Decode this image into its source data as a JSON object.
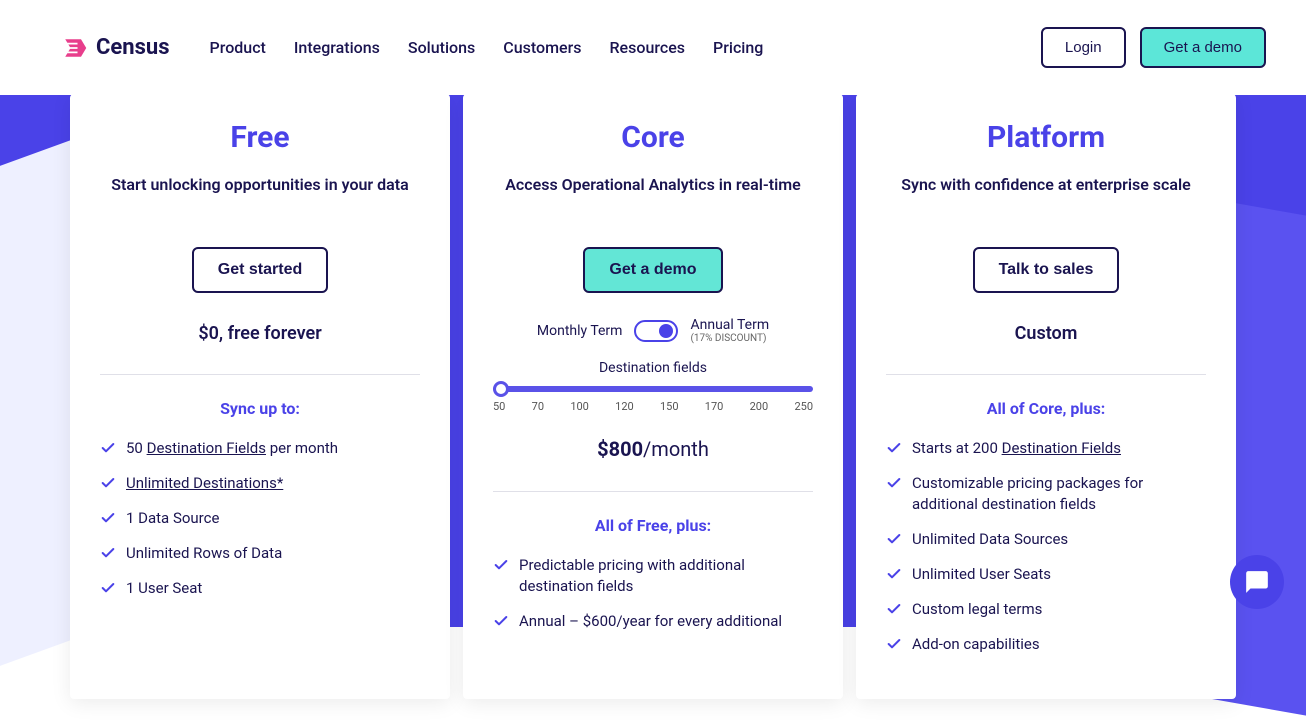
{
  "brand": {
    "name": "Census",
    "logo_color": "#e83e8c"
  },
  "nav": {
    "links": [
      "Product",
      "Integrations",
      "Solutions",
      "Customers",
      "Resources",
      "Pricing"
    ],
    "login": "Login",
    "demo": "Get a demo"
  },
  "colors": {
    "primary": "#4a42e8",
    "teal": "#63e6d6",
    "dark": "#1a1450",
    "bg_purple": "#4a42e8"
  },
  "plans": {
    "free": {
      "title": "Free",
      "subtitle": "Start unlocking opportunities in your data",
      "cta": "Get started",
      "price_line": "$0, free forever",
      "section_label": "Sync up to:",
      "features": [
        {
          "pre": "50 ",
          "link": "Destination Fields",
          "post": " per month"
        },
        {
          "pre": "",
          "link": "Unlimited Destinations*",
          "post": ""
        },
        {
          "pre": "1 Data Source",
          "link": "",
          "post": ""
        },
        {
          "pre": "Unlimited Rows of Data",
          "link": "",
          "post": ""
        },
        {
          "pre": "1 User Seat",
          "link": "",
          "post": ""
        }
      ]
    },
    "core": {
      "title": "Core",
      "subtitle": "Access Operational Analytics in real-time",
      "cta": "Get a demo",
      "term_monthly": "Monthly Term",
      "term_annual": "Annual Term",
      "term_discount": "(17% DISCOUNT)",
      "slider_label": "Destination fields",
      "slider_ticks": [
        "50",
        "70",
        "100",
        "120",
        "150",
        "170",
        "200",
        "250"
      ],
      "price_amount": "$800",
      "price_unit": "/month",
      "section_label": "All of Free, plus:",
      "features": [
        "Predictable pricing with additional destination fields",
        "Annual – $600/year for every additional"
      ]
    },
    "platform": {
      "title": "Platform",
      "subtitle": "Sync with confidence at enterprise scale",
      "cta": "Talk to sales",
      "price_line": "Custom",
      "section_label": "All of Core, plus:",
      "features": [
        {
          "pre": "Starts at 200 ",
          "link": "Destination Fields",
          "post": ""
        },
        {
          "pre": "Customizable pricing packages for additional destination fields",
          "link": "",
          "post": ""
        },
        {
          "pre": "Unlimited Data Sources",
          "link": "",
          "post": ""
        },
        {
          "pre": "Unlimited User Seats",
          "link": "",
          "post": ""
        },
        {
          "pre": "Custom legal terms",
          "link": "",
          "post": ""
        },
        {
          "pre": "Add-on capabilities",
          "link": "",
          "post": ""
        }
      ]
    }
  }
}
